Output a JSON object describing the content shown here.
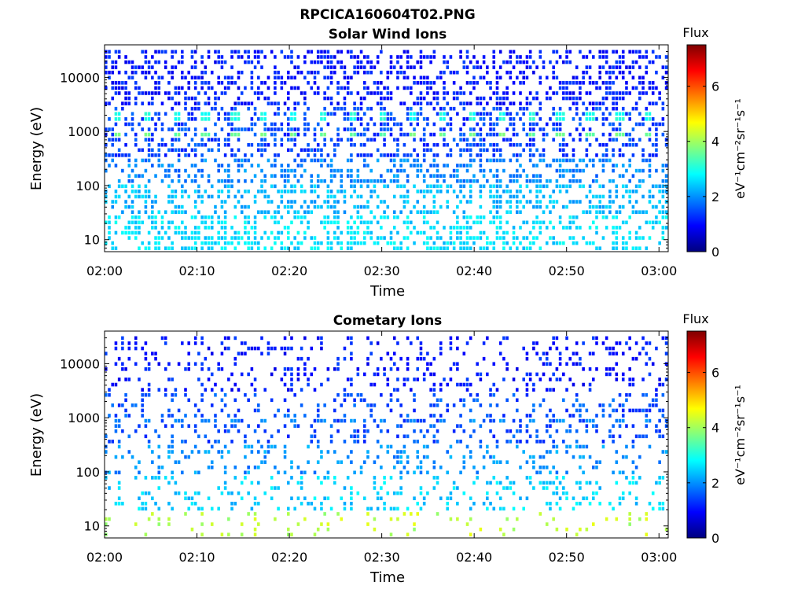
{
  "figure": {
    "title": "RPCICA160604T02.PNG"
  },
  "colormap": {
    "name": "jet",
    "stops": [
      "#00007f",
      "#0000ff",
      "#0080ff",
      "#00ffff",
      "#80ff80",
      "#ffff00",
      "#ff8000",
      "#ff0000",
      "#7f0000"
    ]
  },
  "chart_data": [
    {
      "type": "heatmap",
      "title": "Solar Wind Ions",
      "xlabel": "Time",
      "ylabel": "Energy (eV)",
      "x_ticks": [
        "02:00",
        "02:10",
        "02:20",
        "02:30",
        "02:40",
        "02:50",
        "03:00"
      ],
      "x_range": [
        "02:00",
        "03:01"
      ],
      "y_scale": "log",
      "y_ticks": [
        10,
        100,
        1000,
        10000
      ],
      "y_tick_labels": [
        "10",
        "100",
        "1000",
        "10000"
      ],
      "y_range": [
        6,
        40000
      ],
      "colorbar": {
        "label": "Flux",
        "units": "eV⁻¹cm⁻²sr⁻¹s⁻¹",
        "ticks": [
          0,
          2,
          4,
          6
        ],
        "range": [
          0,
          7.5
        ]
      },
      "bands": [
        {
          "energy_range": [
            3000,
            35000
          ],
          "log_flux": 1.1
        },
        {
          "energy_range": [
            300,
            3000
          ],
          "log_flux": 1.4
        },
        {
          "energy_range": [
            100,
            300
          ],
          "log_flux": 1.9
        },
        {
          "energy_range": [
            30,
            100
          ],
          "log_flux": 2.3
        },
        {
          "energy_range": [
            6,
            30
          ],
          "log_flux": 2.6
        }
      ],
      "peaks": [
        {
          "energy": 850,
          "log_flux": 3.6
        },
        {
          "energy": 1700,
          "log_flux": 3.0
        }
      ],
      "peak_period_min": 3.2
    },
    {
      "type": "heatmap",
      "title": "Cometary Ions",
      "xlabel": "Time",
      "ylabel": "Energy (eV)",
      "x_ticks": [
        "02:00",
        "02:10",
        "02:20",
        "02:30",
        "02:40",
        "02:50",
        "03:00"
      ],
      "x_range": [
        "02:00",
        "03:01"
      ],
      "y_scale": "log",
      "y_ticks": [
        10,
        100,
        1000,
        10000
      ],
      "y_tick_labels": [
        "10",
        "100",
        "1000",
        "10000"
      ],
      "y_range": [
        6,
        40000
      ],
      "colorbar": {
        "label": "Flux",
        "units": "eV⁻¹cm⁻²sr⁻¹s⁻¹",
        "ticks": [
          0,
          2,
          4,
          6
        ],
        "range": [
          0,
          7.5
        ]
      },
      "bands": [
        {
          "energy_range": [
            3000,
            35000
          ],
          "log_flux": 1.1
        },
        {
          "energy_range": [
            300,
            3000
          ],
          "log_flux": 1.5
        },
        {
          "energy_range": [
            80,
            300
          ],
          "log_flux": 2.0
        },
        {
          "energy_range": [
            20,
            80
          ],
          "log_flux": 2.5
        },
        {
          "energy_range": [
            6,
            20
          ],
          "log_flux": 4.2
        }
      ],
      "peaks": [
        {
          "energy": 850,
          "log_flux": 2.0
        }
      ],
      "peak_period_min": 3.2
    }
  ]
}
